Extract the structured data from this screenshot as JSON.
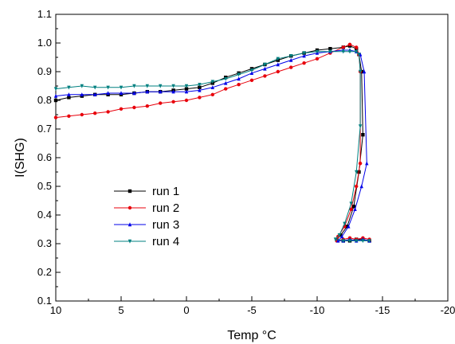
{
  "chart_data": {
    "type": "line",
    "xlabel": "Temp °C",
    "ylabel": "I(SHG)",
    "xlim": [
      10,
      -20
    ],
    "ylim": [
      0.1,
      1.1
    ],
    "x_ticks": [
      10,
      5,
      0,
      -5,
      -10,
      -15,
      -20
    ],
    "x_tick_labels": [
      "10",
      "5",
      "0",
      "-5",
      "-10",
      "-15",
      "-20"
    ],
    "y_ticks": [
      0.1,
      0.2,
      0.3,
      0.4,
      0.5,
      0.6,
      0.7,
      0.8,
      0.9,
      1.0,
      1.1
    ],
    "y_tick_labels": [
      "0.1",
      "0.2",
      "0.3",
      "0.4",
      "0.5",
      "0.6",
      "0.7",
      "0.8",
      "0.9",
      "1.0",
      "1.1"
    ],
    "grid": false,
    "legend_position": "lower-left",
    "series": [
      {
        "name": "run 1",
        "color": "#000000",
        "marker": "square",
        "points": [
          [
            10,
            0.8
          ],
          [
            9,
            0.81
          ],
          [
            8,
            0.815
          ],
          [
            7,
            0.82
          ],
          [
            6,
            0.82
          ],
          [
            5,
            0.82
          ],
          [
            4,
            0.825
          ],
          [
            3,
            0.83
          ],
          [
            2,
            0.83
          ],
          [
            1,
            0.835
          ],
          [
            0,
            0.84
          ],
          [
            -1,
            0.845
          ],
          [
            -2,
            0.86
          ],
          [
            -3,
            0.88
          ],
          [
            -4,
            0.895
          ],
          [
            -5,
            0.91
          ],
          [
            -6,
            0.925
          ],
          [
            -7,
            0.94
          ],
          [
            -8,
            0.955
          ],
          [
            -9,
            0.965
          ],
          [
            -10,
            0.975
          ],
          [
            -11,
            0.98
          ],
          [
            -12,
            0.985
          ],
          [
            -12.5,
            0.99
          ],
          [
            -13,
            0.98
          ],
          [
            -13.2,
            0.96
          ],
          [
            -13.4,
            0.9
          ],
          [
            -13.5,
            0.68
          ],
          [
            -13.2,
            0.55
          ],
          [
            -12.8,
            0.43
          ],
          [
            -12.3,
            0.36
          ],
          [
            -11.8,
            0.33
          ],
          [
            -11.5,
            0.315
          ],
          [
            -12,
            0.31
          ],
          [
            -12.5,
            0.31
          ],
          [
            -13,
            0.315
          ],
          [
            -13.5,
            0.315
          ],
          [
            -14,
            0.31
          ]
        ]
      },
      {
        "name": "run 2",
        "color": "#e8000b",
        "marker": "circle",
        "points": [
          [
            10,
            0.74
          ],
          [
            9,
            0.745
          ],
          [
            8,
            0.75
          ],
          [
            7,
            0.755
          ],
          [
            6,
            0.76
          ],
          [
            5,
            0.77
          ],
          [
            4,
            0.775
          ],
          [
            3,
            0.78
          ],
          [
            2,
            0.79
          ],
          [
            1,
            0.795
          ],
          [
            0,
            0.8
          ],
          [
            -1,
            0.81
          ],
          [
            -2,
            0.82
          ],
          [
            -3,
            0.84
          ],
          [
            -4,
            0.855
          ],
          [
            -5,
            0.87
          ],
          [
            -6,
            0.885
          ],
          [
            -7,
            0.9
          ],
          [
            -8,
            0.915
          ],
          [
            -9,
            0.93
          ],
          [
            -10,
            0.945
          ],
          [
            -11,
            0.965
          ],
          [
            -12,
            0.985
          ],
          [
            -12.5,
            0.995
          ],
          [
            -13,
            0.985
          ],
          [
            -13.2,
            0.96
          ],
          [
            -13.3,
            0.9
          ],
          [
            -13.3,
            0.58
          ],
          [
            -13.0,
            0.5
          ],
          [
            -12.6,
            0.42
          ],
          [
            -12.1,
            0.36
          ],
          [
            -11.6,
            0.325
          ],
          [
            -11.5,
            0.31
          ],
          [
            -12,
            0.315
          ],
          [
            -12.5,
            0.32
          ],
          [
            -13,
            0.315
          ],
          [
            -13.5,
            0.32
          ],
          [
            -14,
            0.315
          ]
        ]
      },
      {
        "name": "run 3",
        "color": "#0000e8",
        "marker": "triangle-up",
        "points": [
          [
            10,
            0.815
          ],
          [
            9,
            0.82
          ],
          [
            8,
            0.82
          ],
          [
            7,
            0.82
          ],
          [
            6,
            0.825
          ],
          [
            5,
            0.825
          ],
          [
            4,
            0.825
          ],
          [
            3,
            0.83
          ],
          [
            2,
            0.83
          ],
          [
            1,
            0.83
          ],
          [
            0,
            0.83
          ],
          [
            -1,
            0.835
          ],
          [
            -2,
            0.845
          ],
          [
            -3,
            0.86
          ],
          [
            -4,
            0.875
          ],
          [
            -5,
            0.895
          ],
          [
            -6,
            0.91
          ],
          [
            -7,
            0.925
          ],
          [
            -8,
            0.94
          ],
          [
            -9,
            0.955
          ],
          [
            -10,
            0.965
          ],
          [
            -11,
            0.97
          ],
          [
            -12,
            0.975
          ],
          [
            -12.5,
            0.975
          ],
          [
            -13,
            0.97
          ],
          [
            -13.3,
            0.96
          ],
          [
            -13.6,
            0.9
          ],
          [
            -13.8,
            0.58
          ],
          [
            -13.4,
            0.5
          ],
          [
            -12.9,
            0.42
          ],
          [
            -12.4,
            0.36
          ],
          [
            -11.9,
            0.325
          ],
          [
            -11.6,
            0.31
          ],
          [
            -12,
            0.31
          ],
          [
            -12.5,
            0.315
          ],
          [
            -13,
            0.31
          ],
          [
            -13.5,
            0.315
          ],
          [
            -14,
            0.31
          ]
        ]
      },
      {
        "name": "run 4",
        "color": "#008080",
        "marker": "triangle-down",
        "points": [
          [
            10,
            0.84
          ],
          [
            9,
            0.845
          ],
          [
            8,
            0.85
          ],
          [
            7,
            0.845
          ],
          [
            6,
            0.845
          ],
          [
            5,
            0.845
          ],
          [
            4,
            0.85
          ],
          [
            3,
            0.85
          ],
          [
            2,
            0.85
          ],
          [
            1,
            0.85
          ],
          [
            0,
            0.85
          ],
          [
            -1,
            0.855
          ],
          [
            -2,
            0.865
          ],
          [
            -3,
            0.875
          ],
          [
            -4,
            0.89
          ],
          [
            -5,
            0.905
          ],
          [
            -6,
            0.925
          ],
          [
            -7,
            0.945
          ],
          [
            -8,
            0.955
          ],
          [
            -9,
            0.965
          ],
          [
            -10,
            0.97
          ],
          [
            -11,
            0.97
          ],
          [
            -12,
            0.97
          ],
          [
            -12.5,
            0.97
          ],
          [
            -13,
            0.97
          ],
          [
            -13.2,
            0.96
          ],
          [
            -13.3,
            0.9
          ],
          [
            -13.3,
            0.71
          ],
          [
            -13.0,
            0.55
          ],
          [
            -12.6,
            0.44
          ],
          [
            -12.1,
            0.37
          ],
          [
            -11.7,
            0.33
          ],
          [
            -11.4,
            0.315
          ],
          [
            -12,
            0.31
          ],
          [
            -12.5,
            0.31
          ],
          [
            -13,
            0.31
          ],
          [
            -13.5,
            0.31
          ],
          [
            -14,
            0.31
          ]
        ]
      }
    ]
  }
}
